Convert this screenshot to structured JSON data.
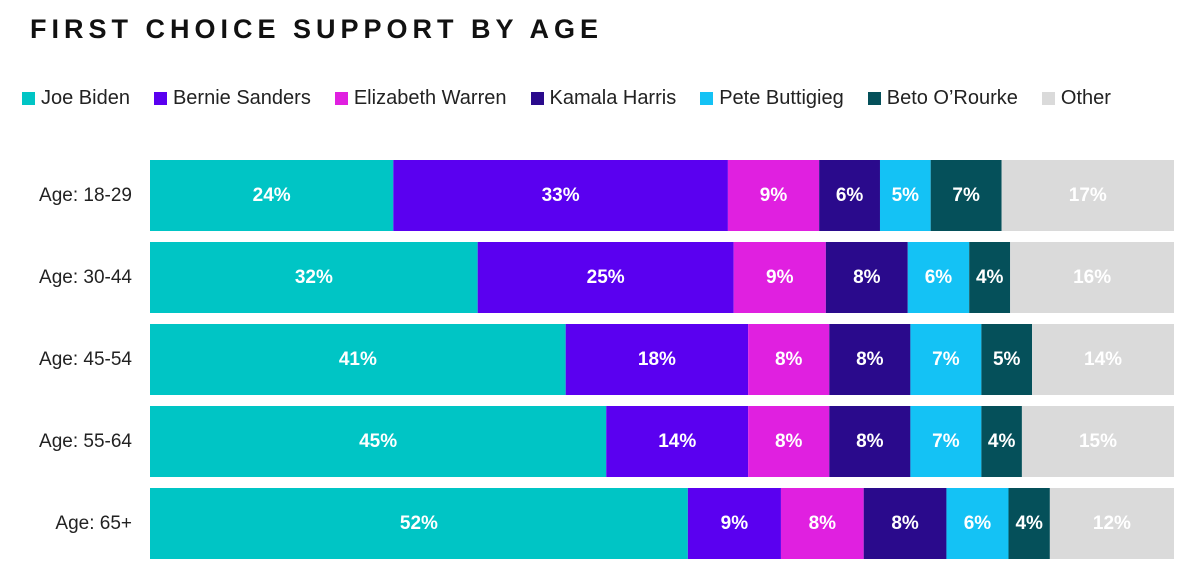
{
  "chart_data": {
    "type": "bar",
    "orientation": "horizontal",
    "stacked": true,
    "title": "FIRST CHOICE SUPPORT BY AGE",
    "xlabel": "",
    "ylabel": "",
    "xlim": [
      0,
      100
    ],
    "grid": false,
    "legend_position": "top",
    "categories": [
      "Age: 18-29",
      "Age: 30-44",
      "Age: 45-54",
      "Age: 55-64",
      "Age: 65+"
    ],
    "series": [
      {
        "name": "Joe Biden",
        "color": "#00C5C5",
        "values": [
          24,
          32,
          41,
          45,
          52
        ],
        "labels": [
          "24%",
          "32%",
          "41%",
          "45%",
          "52%"
        ]
      },
      {
        "name": "Bernie Sanders",
        "color": "#5A00F0",
        "values": [
          33,
          25,
          18,
          14,
          9
        ],
        "labels": [
          "33%",
          "25%",
          "18%",
          "14%",
          "9%"
        ]
      },
      {
        "name": "Elizabeth Warren",
        "color": "#E020E0",
        "values": [
          9,
          9,
          8,
          8,
          8
        ],
        "labels": [
          "9%",
          "9%",
          "8%",
          "8%",
          "8%"
        ]
      },
      {
        "name": "Kamala Harris",
        "color": "#2A0A8C",
        "values": [
          6,
          8,
          8,
          8,
          8
        ],
        "labels": [
          "6%",
          "8%",
          "8%",
          "8%",
          "8%"
        ]
      },
      {
        "name": "Pete Buttigieg",
        "color": "#14C2F5",
        "values": [
          5,
          6,
          7,
          7,
          6
        ],
        "labels": [
          "5%",
          "6%",
          "7%",
          "7%",
          "6%"
        ]
      },
      {
        "name": "Beto O’Rourke",
        "color": "#05505A",
        "values": [
          7,
          4,
          5,
          4,
          4
        ],
        "labels": [
          "7%",
          "4%",
          "5%",
          "4%",
          "4%"
        ]
      },
      {
        "name": "Other",
        "color": "#DADADA",
        "values": [
          17,
          16,
          14,
          15,
          12
        ],
        "labels": [
          "17%",
          "16%",
          "14%",
          "15%",
          "12%"
        ]
      }
    ]
  }
}
